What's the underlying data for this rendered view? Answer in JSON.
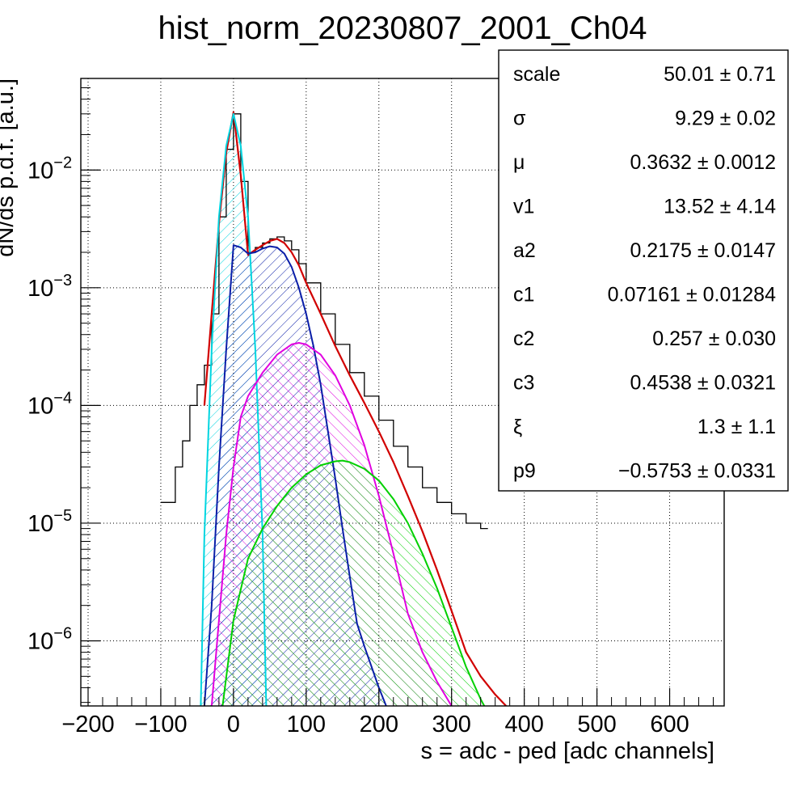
{
  "chart_data": {
    "type": "line",
    "title": "hist_norm_20230807_2001_Ch04",
    "xlabel": "s = adc - ped [adc channels]",
    "ylabel": "dN/ds p.d.f. [a.u.]",
    "xlim": [
      -210,
      675
    ],
    "ylim": [
      2.8e-07,
      0.06
    ],
    "yscale": "log",
    "grid": true,
    "x_ticks": [
      -200,
      -100,
      0,
      100,
      200,
      300,
      400,
      500,
      600
    ],
    "x_tick_labels": [
      "−200",
      "−100",
      "0",
      "100",
      "200",
      "300",
      "400",
      "500",
      "600"
    ],
    "y_ticks": [
      {
        "mantissa": "10",
        "exp": "−6"
      },
      {
        "mantissa": "10",
        "exp": "−5"
      },
      {
        "mantissa": "10",
        "exp": "−4"
      },
      {
        "mantissa": "10",
        "exp": "−3"
      },
      {
        "mantissa": "10",
        "exp": "−2"
      }
    ],
    "y_tick_values": [
      1e-06,
      1e-05,
      0.0001,
      0.001,
      0.01
    ],
    "series": [
      {
        "kind": "histogram",
        "color": "#000000",
        "x": [
          -100,
          -90,
          -80,
          -70,
          -60,
          -50,
          -40,
          -30,
          -20,
          -10,
          0,
          10,
          20,
          30,
          40,
          50,
          60,
          70,
          80,
          90,
          100,
          120,
          140,
          160,
          180,
          200,
          220,
          240,
          260,
          280,
          300,
          320,
          340
        ],
        "values": [
          1.5e-05,
          1.5e-05,
          3e-05,
          5e-05,
          0.0001,
          0.00015,
          0.00022,
          0.0006,
          0.004,
          0.015,
          0.03,
          0.008,
          0.002,
          0.0022,
          0.0024,
          0.0026,
          0.0027,
          0.0025,
          0.0021,
          0.0016,
          0.0011,
          0.0006,
          0.00033,
          0.00019,
          0.00012,
          7.5e-05,
          4.5e-05,
          3e-05,
          2e-05,
          1.5e-05,
          1.2e-05,
          1e-05,
          9e-06
        ]
      },
      {
        "kind": "fit",
        "color": "#d10000",
        "x": [
          -40,
          -30,
          -20,
          -10,
          0,
          10,
          20,
          30,
          40,
          50,
          60,
          70,
          80,
          90,
          100,
          120,
          140,
          160,
          180,
          200,
          220,
          240,
          260,
          280,
          300,
          320,
          340,
          360,
          375
        ],
        "values": [
          0.0001,
          0.0006,
          0.0035,
          0.014,
          0.031,
          0.009,
          0.0019,
          0.0021,
          0.0023,
          0.0025,
          0.0026,
          0.0024,
          0.002,
          0.00155,
          0.0011,
          0.0006,
          0.00032,
          0.00018,
          0.000105,
          6e-05,
          3.3e-05,
          1.7e-05,
          8.5e-06,
          4e-06,
          1.8e-06,
          8e-07,
          5e-07,
          3.5e-07,
          2.8e-07
        ]
      },
      {
        "kind": "component",
        "color": "#00d5e0",
        "hatch": "/",
        "x": [
          -45,
          -40,
          -30,
          -20,
          -10,
          0,
          10,
          20,
          30,
          40,
          45
        ],
        "values": [
          2.8e-07,
          8e-06,
          0.0003,
          0.004,
          0.016,
          0.03,
          0.016,
          0.004,
          0.0003,
          8e-06,
          2.8e-07
        ]
      },
      {
        "kind": "component",
        "color": "#0a1ea8",
        "hatch": "/",
        "x": [
          -40,
          -30,
          -20,
          -10,
          0,
          10,
          20,
          30,
          40,
          50,
          60,
          70,
          80,
          90,
          100,
          110,
          120,
          130,
          140,
          150,
          160,
          170,
          180,
          190,
          200,
          210
        ],
        "values": [
          2.8e-07,
          2e-06,
          3e-05,
          0.0003,
          0.0023,
          0.0022,
          0.00195,
          0.002,
          0.00215,
          0.00225,
          0.0022,
          0.00195,
          0.0015,
          0.001,
          0.0006,
          0.00032,
          0.00015,
          6e-05,
          2.4e-05,
          9e-06,
          3.5e-06,
          1.4e-06,
          9e-07,
          6e-07,
          4e-07,
          2.8e-07
        ]
      },
      {
        "kind": "component",
        "color": "#e000e0",
        "hatch": "\\",
        "x": [
          -30,
          -20,
          -10,
          0,
          10,
          20,
          40,
          60,
          80,
          90,
          100,
          120,
          140,
          160,
          180,
          200,
          220,
          240,
          260,
          280,
          300
        ],
        "values": [
          2.8e-07,
          1.5e-06,
          8e-06,
          3e-05,
          8e-05,
          0.00012,
          0.00019,
          0.00027,
          0.00033,
          0.00034,
          0.00033,
          0.00027,
          0.00018,
          0.0001,
          4.6e-05,
          1.7e-05,
          5.5e-06,
          1.7e-06,
          8e-07,
          4.5e-07,
          2.8e-07
        ]
      },
      {
        "kind": "component",
        "color": "#00d000",
        "hatch": "\\",
        "x": [
          -15,
          0,
          20,
          40,
          60,
          80,
          100,
          120,
          140,
          150,
          160,
          180,
          200,
          220,
          240,
          260,
          280,
          300,
          320,
          340,
          345
        ],
        "values": [
          2.8e-07,
          1.5e-06,
          5e-06,
          9e-06,
          1.4e-05,
          2e-05,
          2.6e-05,
          3.1e-05,
          3.35e-05,
          3.4e-05,
          3.3e-05,
          2.9e-05,
          2.3e-05,
          1.6e-05,
          1e-05,
          5.5e-06,
          2.8e-06,
          1.3e-06,
          6e-07,
          3.2e-07,
          2.8e-07
        ]
      }
    ]
  },
  "stats": [
    {
      "name": "scale",
      "value": "50.01 ± 0.71"
    },
    {
      "name": "σ",
      "value": "9.29 ± 0.02"
    },
    {
      "name": "μ",
      "value": "0.3632 ± 0.0012"
    },
    {
      "name": "v1",
      "value": "13.52 ± 4.14"
    },
    {
      "name": "a2",
      "value": "0.2175 ± 0.0147"
    },
    {
      "name": "c1",
      "value": "0.07161 ± 0.01284"
    },
    {
      "name": "c2",
      "value": "0.257 ± 0.030"
    },
    {
      "name": "c3",
      "value": "0.4538 ± 0.0321"
    },
    {
      "name": "ξ",
      "value": "1.3 ± 1.1"
    },
    {
      "name": "p9",
      "value": "−0.5753 ± 0.0331"
    }
  ]
}
